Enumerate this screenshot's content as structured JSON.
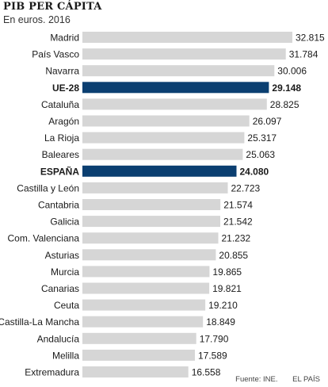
{
  "header": {
    "title": "PIB PER CÁPITA",
    "subtitle": "En euros. 2016"
  },
  "chart_data": {
    "type": "bar",
    "orientation": "horizontal",
    "categories": [
      "Madrid",
      "País Vasco",
      "Navarra",
      "UE-28",
      "Cataluña",
      "Aragón",
      "La Rioja",
      "Baleares",
      "ESPAÑA",
      "Castilla y León",
      "Cantabria",
      "Galicia",
      "Com. Valenciana",
      "Asturias",
      "Murcia",
      "Canarias",
      "Ceuta",
      "Castilla-La Mancha",
      "Andalucía",
      "Melilla",
      "Extremadura"
    ],
    "values": [
      32815,
      31784,
      30006,
      29148,
      28825,
      26097,
      25317,
      25063,
      24080,
      22723,
      21574,
      21542,
      21232,
      20855,
      19865,
      19821,
      19210,
      18849,
      17790,
      17589,
      16558
    ],
    "value_labels": [
      "32.815",
      "31.784",
      "30.006",
      "29.148",
      "28.825",
      "26.097",
      "25.317",
      "25.063",
      "24.080",
      "22.723",
      "21.574",
      "21.542",
      "21.232",
      "20.855",
      "19.865",
      "19.821",
      "19.210",
      "18.849",
      "17.790",
      "17.589",
      "16.558"
    ],
    "highlight": [
      "UE-28",
      "ESPAÑA"
    ],
    "colors": {
      "bar": "#d6d6d6",
      "highlight": "#0b3f71",
      "text": "#1a1a1a"
    },
    "xlim": [
      0,
      32815
    ],
    "grid": false,
    "legend": "none"
  },
  "footer": {
    "source": "Fuente: INE.",
    "publisher": "EL PAÍS"
  }
}
